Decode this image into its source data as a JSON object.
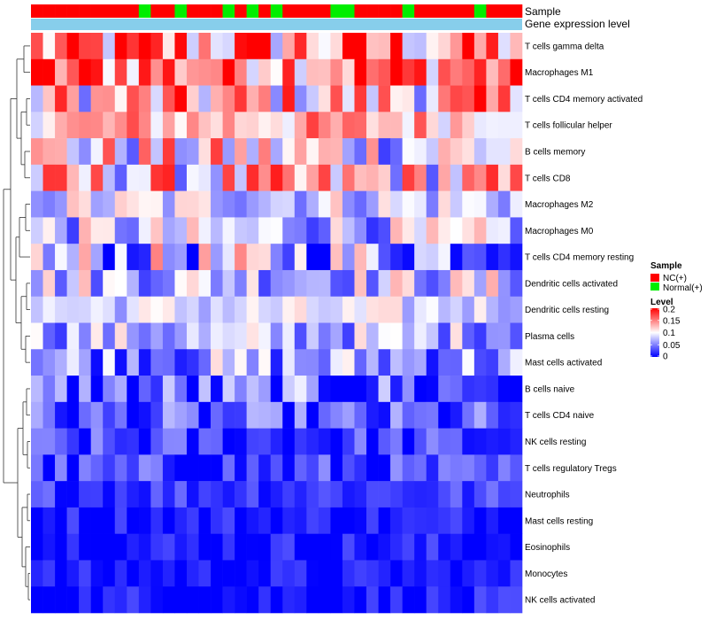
{
  "chart_data": {
    "type": "heatmap",
    "annotation_tracks": [
      {
        "name": "Sample",
        "label": "Sample"
      },
      {
        "name": "Gene expression level",
        "label": "Gene expression level"
      }
    ],
    "rows": [
      "T cells gamma delta",
      "Macrophages M1",
      "T cells CD4 memory activated",
      "T cells follicular helper",
      "B cells memory",
      "T cells CD8",
      "Macrophages M2",
      "Macrophages M0",
      "T cells CD4 memory resting",
      "Dendritic cells activated",
      "Dendritic cells resting",
      "Plasma cells",
      "Mast cells activated",
      "B cells naive",
      "T cells CD4 naive",
      "NK cells resting",
      "T cells regulatory  Tregs",
      "Neutrophils",
      "Mast cells resting",
      "Eosinophils",
      "Monocytes",
      "NK cells activated"
    ],
    "sample_groups": [
      "NC",
      "NC",
      "NC",
      "NC",
      "NC",
      "NC",
      "NC",
      "NC",
      "NC",
      "Normal",
      "NC",
      "NC",
      "Normal",
      "NC",
      "NC",
      "NC",
      "Normal",
      "NC",
      "Normal",
      "NC",
      "Normal",
      "NC",
      "NC",
      "NC",
      "NC",
      "Normal",
      "Normal",
      "NC",
      "NC",
      "NC",
      "NC",
      "Normal",
      "NC",
      "NC",
      "NC",
      "NC",
      "NC",
      "Normal",
      "NC",
      "NC",
      "NC"
    ],
    "legend": {
      "sample": {
        "title": "Sample",
        "entries": [
          {
            "label": "NC(+)",
            "color": "#ff0000"
          },
          {
            "label": "Normal(+)",
            "color": "#00ee00"
          }
        ]
      },
      "level": {
        "title": "Level",
        "ticks": [
          0.2,
          0.15,
          0.1,
          0.05,
          0
        ],
        "tick_labels": [
          "0.2",
          "0.15",
          "0.1",
          "0.05",
          "0"
        ],
        "range": [
          0,
          0.2
        ],
        "colors": [
          "#0000ff",
          "#ffffff",
          "#ff0000"
        ]
      }
    },
    "gene_expression_color": "#87ceeb",
    "row_means": [
      0.14,
      0.16,
      0.12,
      0.13,
      0.1,
      0.11,
      0.085,
      0.075,
      0.07,
      0.08,
      0.085,
      0.07,
      0.06,
      0.03,
      0.025,
      0.02,
      0.02,
      0.025,
      0.01,
      0.01,
      0.008,
      0.008
    ],
    "row_spreads": [
      0.06,
      0.05,
      0.05,
      0.03,
      0.05,
      0.05,
      0.03,
      0.035,
      0.05,
      0.035,
      0.02,
      0.03,
      0.035,
      0.04,
      0.03,
      0.025,
      0.025,
      0.015,
      0.015,
      0.015,
      0.012,
      0.015
    ]
  }
}
